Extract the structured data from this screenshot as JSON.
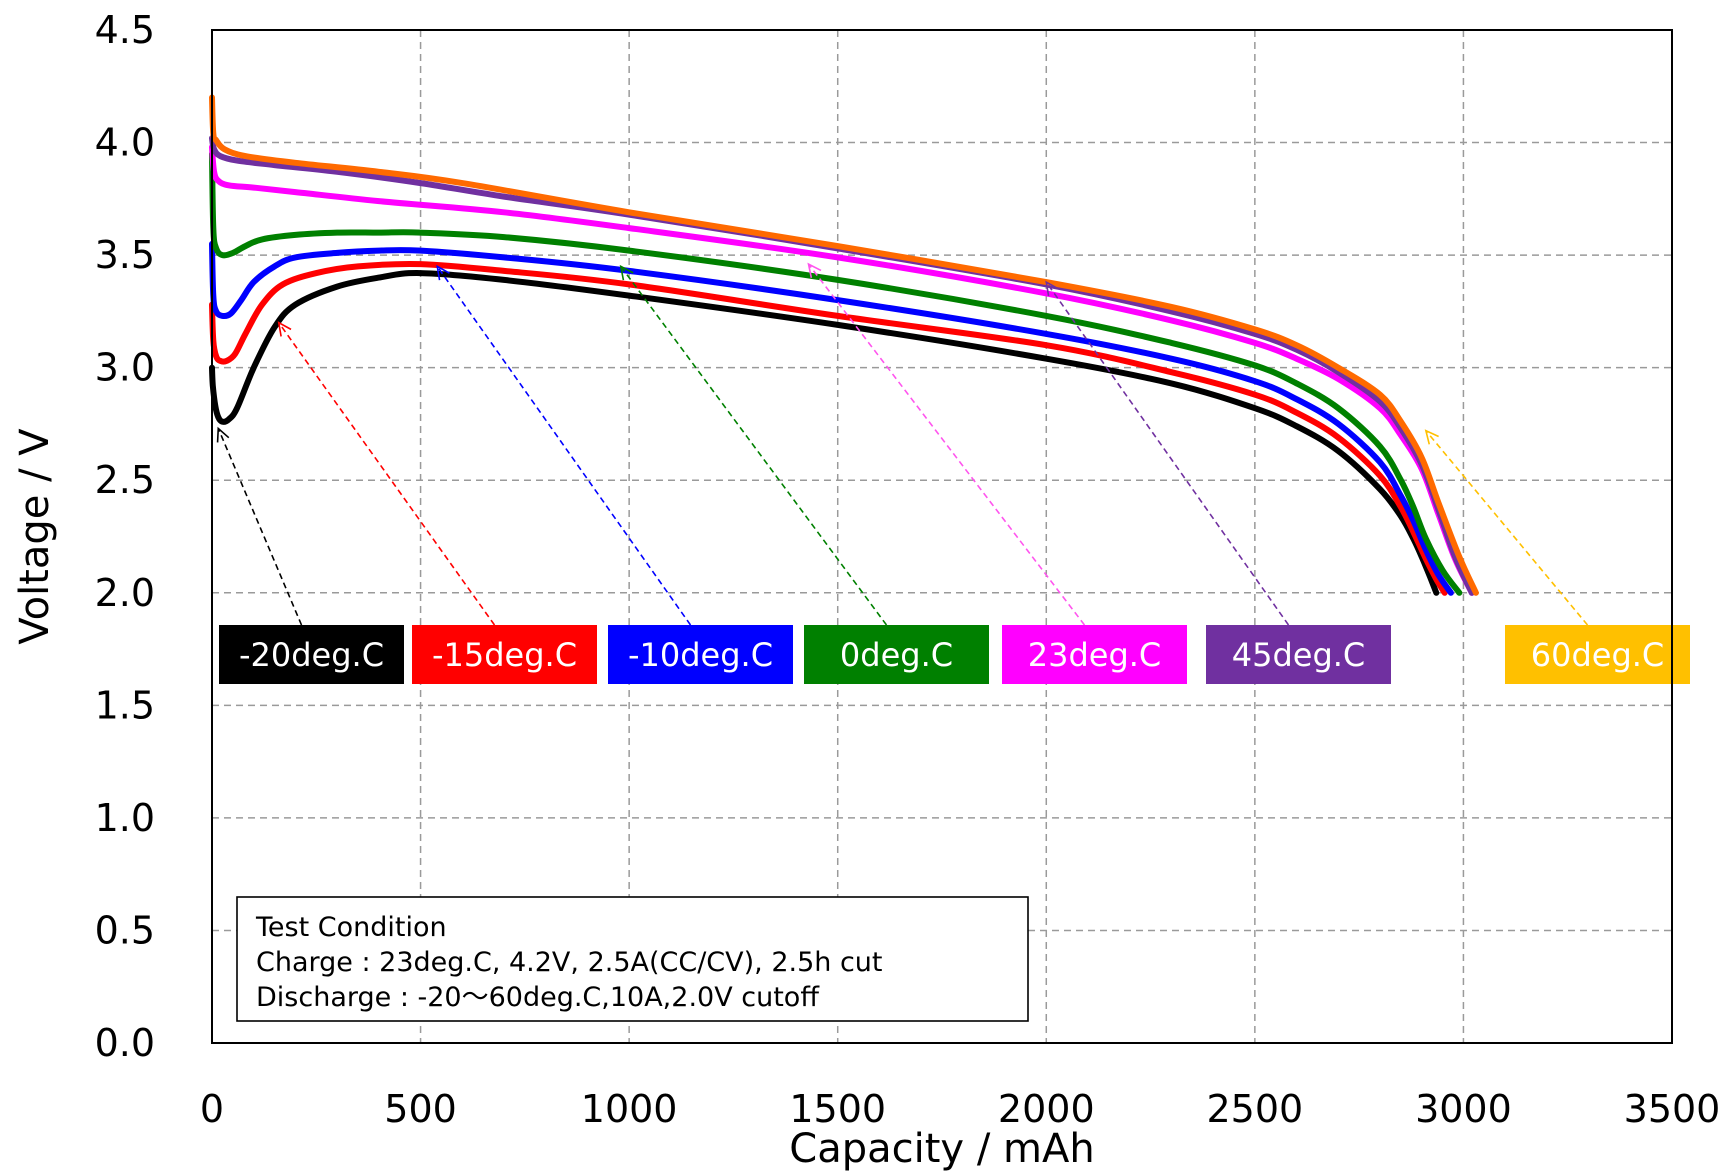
{
  "chart_data": {
    "type": "line",
    "xlabel": "Capacity / mAh",
    "ylabel": "Voltage / V",
    "xlim": [
      0,
      3500
    ],
    "ylim": [
      0,
      4.5
    ],
    "xticks": [
      0,
      500,
      1000,
      1500,
      2000,
      2500,
      3000,
      3500
    ],
    "yticks": [
      "0.0",
      "0.5",
      "1.0",
      "1.5",
      "2.0",
      "2.5",
      "3.0",
      "3.5",
      "4.0",
      "4.5"
    ],
    "grid": true,
    "series": [
      {
        "name": "-20deg.C",
        "color": "#000000",
        "x": [
          0,
          2,
          8,
          15,
          25,
          40,
          60,
          100,
          150,
          200,
          300,
          400,
          500,
          700,
          1000,
          1500,
          2000,
          2300,
          2500,
          2600,
          2700,
          2800,
          2850,
          2880,
          2900,
          2920,
          2935
        ],
        "y": [
          3.0,
          2.92,
          2.83,
          2.78,
          2.76,
          2.77,
          2.82,
          3.0,
          3.18,
          3.28,
          3.36,
          3.4,
          3.42,
          3.39,
          3.32,
          3.19,
          3.04,
          2.93,
          2.82,
          2.74,
          2.63,
          2.46,
          2.34,
          2.24,
          2.16,
          2.07,
          2.0
        ],
        "tag": {
          "label": "-20deg.C",
          "bg": "#000000",
          "arrow_color": "#000000",
          "target": [
            15,
            2.73
          ]
        }
      },
      {
        "name": "-15deg.C",
        "color": "#ff0000",
        "x": [
          0,
          3,
          10,
          20,
          35,
          55,
          80,
          120,
          170,
          250,
          350,
          500,
          700,
          1000,
          1500,
          2000,
          2300,
          2500,
          2600,
          2700,
          2800,
          2850,
          2880,
          2910,
          2935,
          2955
        ],
        "y": [
          3.28,
          3.12,
          3.05,
          3.03,
          3.03,
          3.06,
          3.15,
          3.28,
          3.37,
          3.42,
          3.45,
          3.46,
          3.43,
          3.37,
          3.23,
          3.1,
          2.98,
          2.88,
          2.8,
          2.69,
          2.52,
          2.38,
          2.27,
          2.15,
          2.06,
          2.0
        ],
        "tag": {
          "label": "-15deg.C",
          "bg": "#ff0000",
          "arrow_color": "#ff0000",
          "target": [
            160,
            3.2
          ]
        }
      },
      {
        "name": "-10deg.C",
        "color": "#0000ff",
        "x": [
          0,
          3,
          10,
          25,
          45,
          70,
          100,
          150,
          200,
          300,
          400,
          500,
          700,
          1000,
          1500,
          2000,
          2300,
          2500,
          2600,
          2700,
          2800,
          2850,
          2880,
          2910,
          2940,
          2970
        ],
        "y": [
          3.55,
          3.32,
          3.25,
          3.23,
          3.24,
          3.3,
          3.38,
          3.45,
          3.49,
          3.51,
          3.52,
          3.52,
          3.49,
          3.43,
          3.3,
          3.15,
          3.04,
          2.94,
          2.86,
          2.75,
          2.58,
          2.43,
          2.32,
          2.19,
          2.08,
          2.0
        ],
        "tag": {
          "label": "-10deg.C",
          "bg": "#0000ff",
          "arrow_color": "#0000ff",
          "target": [
            540,
            3.45
          ]
        }
      },
      {
        "name": "0deg.C",
        "color": "#008000",
        "x": [
          0,
          3,
          10,
          25,
          50,
          80,
          120,
          200,
          300,
          400,
          500,
          700,
          1000,
          1500,
          2000,
          2300,
          2500,
          2600,
          2700,
          2800,
          2850,
          2880,
          2910,
          2950,
          2990
        ],
        "y": [
          3.95,
          3.62,
          3.53,
          3.5,
          3.51,
          3.54,
          3.57,
          3.59,
          3.6,
          3.6,
          3.6,
          3.58,
          3.52,
          3.39,
          3.23,
          3.11,
          3.01,
          2.93,
          2.82,
          2.65,
          2.5,
          2.38,
          2.24,
          2.1,
          2.0
        ],
        "tag": {
          "label": "0deg.C",
          "bg": "#008000",
          "arrow_color": "#008000",
          "target": [
            980,
            3.45
          ]
        }
      },
      {
        "name": "23deg.C",
        "color": "#ff00ff",
        "x": [
          0,
          5,
          15,
          40,
          100,
          200,
          400,
          700,
          1000,
          1500,
          2000,
          2300,
          2500,
          2600,
          2700,
          2800,
          2850,
          2900,
          2940,
          2980,
          3020
        ],
        "y": [
          3.98,
          3.87,
          3.83,
          3.81,
          3.8,
          3.78,
          3.74,
          3.69,
          3.62,
          3.49,
          3.33,
          3.21,
          3.11,
          3.04,
          2.95,
          2.82,
          2.7,
          2.55,
          2.35,
          2.15,
          2.0
        ],
        "tag": {
          "label": "23deg.C",
          "bg": "#ff00ff",
          "arrow_color": "#ff55ee",
          "target": [
            1430,
            3.46
          ]
        }
      },
      {
        "name": "45deg.C",
        "color": "#7030a0",
        "x": [
          0,
          5,
          20,
          60,
          150,
          300,
          500,
          700,
          1000,
          1500,
          2000,
          2300,
          2500,
          2600,
          2700,
          2800,
          2850,
          2900,
          2940,
          2980,
          3020
        ],
        "y": [
          4.02,
          3.97,
          3.94,
          3.92,
          3.9,
          3.87,
          3.82,
          3.76,
          3.68,
          3.53,
          3.37,
          3.25,
          3.15,
          3.08,
          2.98,
          2.85,
          2.73,
          2.57,
          2.37,
          2.16,
          2.0
        ],
        "tag": {
          "label": "45deg.C",
          "bg": "#7030a0",
          "arrow_color": "#7030a0",
          "target": [
            2000,
            3.38
          ]
        }
      },
      {
        "name": "60deg.C",
        "color": "#ff6a00",
        "x": [
          0,
          3,
          10,
          30,
          80,
          200,
          400,
          600,
          1000,
          1500,
          2000,
          2300,
          2500,
          2600,
          2700,
          2800,
          2850,
          2900,
          2940,
          2990,
          3030
        ],
        "y": [
          4.2,
          4.04,
          4.01,
          3.97,
          3.94,
          3.91,
          3.87,
          3.82,
          3.69,
          3.54,
          3.38,
          3.27,
          3.17,
          3.1,
          3.0,
          2.88,
          2.76,
          2.6,
          2.4,
          2.16,
          2.0
        ],
        "tag": {
          "label": "60deg.C",
          "bg": "#ffc000",
          "arrow_color": "#ffc000",
          "target": [
            2910,
            2.72
          ]
        }
      }
    ],
    "annotations": [
      {
        "kind": "test-condition",
        "lines": [
          "Test Condition",
          "Charge : 23deg.C, 4.2V, 2.5A(CC/CV), 2.5h cut",
          "Discharge : -20～60deg.C,10A,2.0V cutoff"
        ]
      }
    ]
  }
}
